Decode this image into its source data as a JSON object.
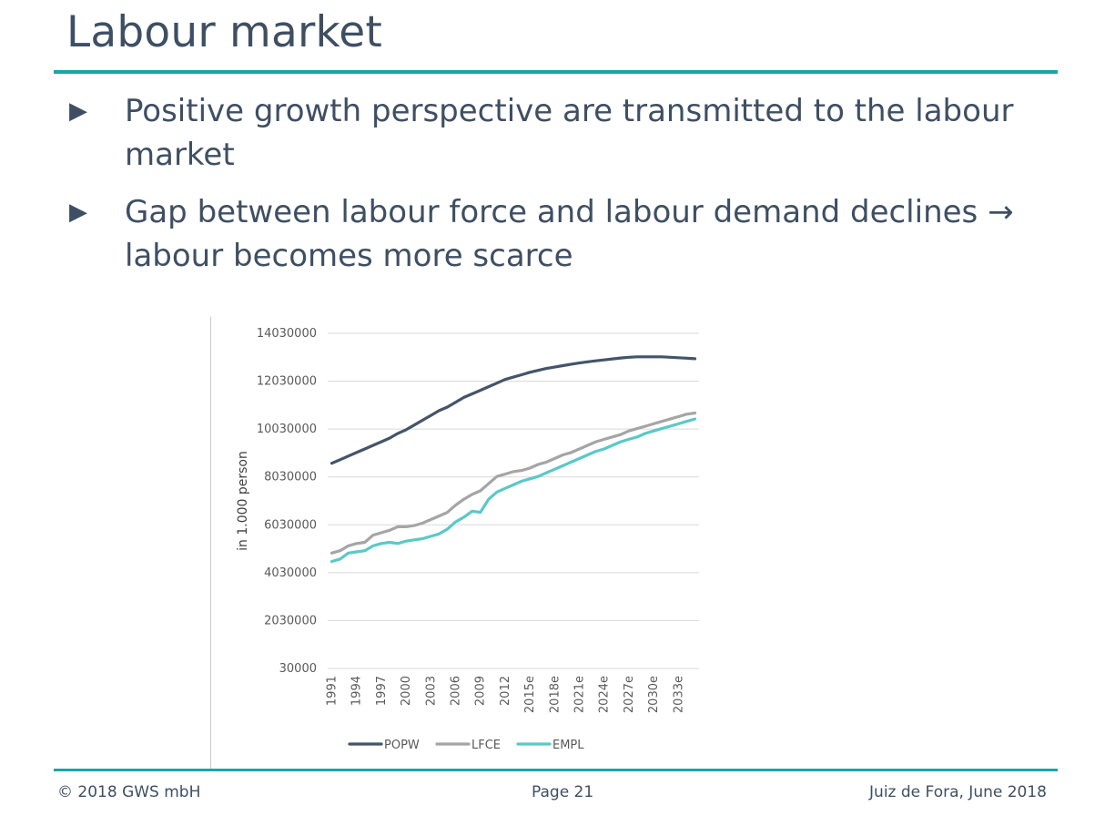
{
  "slide": {
    "title": "Labour market",
    "bullet_icon": "right-pointing-triangle",
    "bullets": [
      "Positive growth perspective are transmitted to the labour market",
      "Gap between labour force and labour demand declines → labour becomes more scarce"
    ]
  },
  "footer": {
    "copyright": "© 2018 GWS mbH",
    "page": "Page 21",
    "place_date": "Juiz de Fora, June 2018"
  },
  "colors": {
    "title": "#3f4f63",
    "rule": "#1aa6a6",
    "POPW": "#44546a",
    "LFCE": "#a5a5a5",
    "EMPL": "#5bc8c8"
  },
  "chart_data": {
    "type": "line",
    "ylabel": "in 1.000 person",
    "ylim": [
      30000,
      14030000
    ],
    "yticks": [
      "14030000",
      "12030000",
      "10030000",
      "8030000",
      "6030000",
      "4030000",
      "2030000",
      "30000"
    ],
    "ytick_values": [
      14030000,
      12030000,
      10030000,
      8030000,
      6030000,
      4030000,
      2030000,
      30000
    ],
    "x": [
      "1991",
      "1992",
      "1993",
      "1994",
      "1995",
      "1996",
      "1997",
      "1998",
      "1999",
      "2000",
      "2001",
      "2002",
      "2003",
      "2004",
      "2005",
      "2006",
      "2007",
      "2008",
      "2009",
      "2010",
      "2011",
      "2012",
      "2013",
      "2014",
      "2015e",
      "2016e",
      "2017e",
      "2018e",
      "2019e",
      "2020e",
      "2021e",
      "2022e",
      "2023e",
      "2024e",
      "2025e",
      "2026e",
      "2027e",
      "2028e",
      "2029e",
      "2030e",
      "2031e",
      "2032e",
      "2033e",
      "2034e",
      "2035e"
    ],
    "xtick_labels": [
      "1991",
      "1994",
      "1997",
      "2000",
      "2003",
      "2006",
      "2009",
      "2012",
      "2015e",
      "2018e",
      "2021e",
      "2024e",
      "2027e",
      "2030e",
      "2033e"
    ],
    "grid": "horizontal",
    "legend_position": "bottom",
    "series": [
      {
        "name": "POPW",
        "values": [
          8600000,
          8750000,
          8900000,
          9050000,
          9200000,
          9350000,
          9500000,
          9650000,
          9850000,
          10000000,
          10200000,
          10400000,
          10600000,
          10800000,
          10950000,
          11150000,
          11350000,
          11500000,
          11650000,
          11800000,
          11950000,
          12100000,
          12200000,
          12300000,
          12400000,
          12480000,
          12560000,
          12620000,
          12680000,
          12740000,
          12790000,
          12840000,
          12880000,
          12920000,
          12960000,
          13000000,
          13030000,
          13050000,
          13050000,
          13050000,
          13050000,
          13030000,
          13010000,
          12990000,
          12970000
        ]
      },
      {
        "name": "LFCE",
        "values": [
          4850000,
          4950000,
          5150000,
          5250000,
          5300000,
          5600000,
          5700000,
          5800000,
          5950000,
          5950000,
          6000000,
          6100000,
          6250000,
          6400000,
          6550000,
          6850000,
          7100000,
          7300000,
          7450000,
          7750000,
          8050000,
          8150000,
          8250000,
          8300000,
          8400000,
          8550000,
          8650000,
          8800000,
          8950000,
          9050000,
          9200000,
          9350000,
          9500000,
          9600000,
          9700000,
          9800000,
          9950000,
          10050000,
          10150000,
          10250000,
          10350000,
          10450000,
          10550000,
          10650000,
          10700000
        ]
      },
      {
        "name": "EMPL",
        "values": [
          4500000,
          4600000,
          4850000,
          4900000,
          4950000,
          5150000,
          5250000,
          5300000,
          5250000,
          5350000,
          5400000,
          5450000,
          5550000,
          5650000,
          5850000,
          6150000,
          6350000,
          6600000,
          6550000,
          7100000,
          7400000,
          7550000,
          7700000,
          7850000,
          7950000,
          8050000,
          8200000,
          8350000,
          8500000,
          8650000,
          8800000,
          8950000,
          9100000,
          9200000,
          9350000,
          9500000,
          9600000,
          9700000,
          9850000,
          9950000,
          10050000,
          10150000,
          10250000,
          10350000,
          10450000
        ]
      }
    ]
  }
}
